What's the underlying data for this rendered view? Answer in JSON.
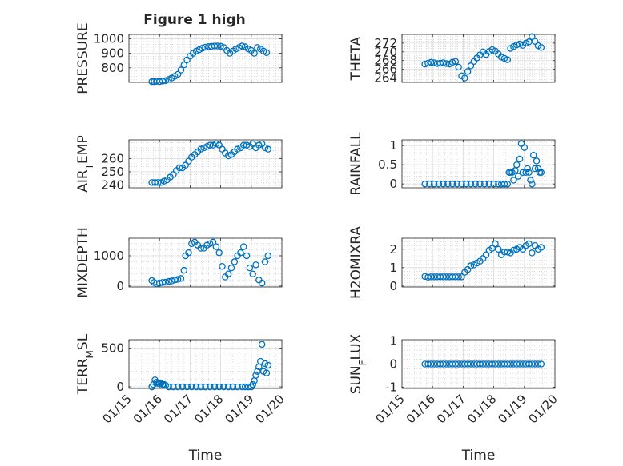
{
  "figure": {
    "title": "Figure 1 high"
  },
  "colors": {
    "marker": "#0072BD",
    "axis": "#262626",
    "grid": "#c8c8c8",
    "background": "#ffffff"
  },
  "chart_data": [
    {
      "id": "pressure",
      "type": "scatter",
      "marker": "circle-open",
      "ylabel": "PRESSURE",
      "xlabel": "",
      "title": "Figure 1 high",
      "ylim": [
        700,
        1030
      ],
      "yticks": [
        800,
        900,
        1000
      ],
      "xlim": [
        0,
        5
      ],
      "xticks": [
        0,
        1,
        2,
        3,
        4,
        5
      ],
      "grid": true,
      "minor_grid": true,
      "x": [
        0.75,
        0.82,
        0.9,
        1.0,
        1.1,
        1.2,
        1.3,
        1.4,
        1.5,
        1.6,
        1.7,
        1.8,
        1.9,
        2.0,
        2.1,
        2.2,
        2.3,
        2.4,
        2.5,
        2.6,
        2.7,
        2.8,
        2.9,
        3.0,
        3.1,
        3.2,
        3.3,
        3.4,
        3.5,
        3.6,
        3.7,
        3.8,
        3.9,
        4.0,
        4.1,
        4.2,
        4.3,
        4.4,
        4.5
      ],
      "y": [
        705,
        705,
        707,
        705,
        708,
        712,
        720,
        730,
        742,
        755,
        785,
        820,
        855,
        880,
        900,
        915,
        925,
        935,
        942,
        946,
        948,
        950,
        950,
        948,
        940,
        920,
        900,
        915,
        930,
        940,
        950,
        945,
        930,
        920,
        900,
        940,
        930,
        915,
        905
      ]
    },
    {
      "id": "theta",
      "type": "scatter",
      "marker": "circle-open",
      "ylabel": "THETA",
      "xlabel": "",
      "ylim": [
        263,
        274
      ],
      "yticks": [
        264,
        266,
        268,
        270,
        272
      ],
      "xlim": [
        0,
        5
      ],
      "xticks": [
        0,
        1,
        2,
        3,
        4,
        5
      ],
      "grid": true,
      "minor_grid": true,
      "x": [
        0.75,
        0.85,
        0.95,
        1.05,
        1.15,
        1.25,
        1.35,
        1.45,
        1.55,
        1.65,
        1.75,
        1.85,
        1.95,
        2.05,
        2.15,
        2.25,
        2.35,
        2.45,
        2.55,
        2.65,
        2.75,
        2.85,
        2.95,
        3.05,
        3.15,
        3.25,
        3.35,
        3.45,
        3.55,
        3.65,
        3.75,
        3.85,
        3.95,
        4.05,
        4.15,
        4.25,
        4.35,
        4.45,
        4.55
      ],
      "y": [
        267.2,
        267.4,
        267.6,
        267.5,
        267.3,
        267.4,
        267.5,
        267.3,
        267.2,
        267.6,
        267.8,
        266.5,
        264.5,
        264.0,
        265.5,
        266.8,
        267.8,
        268.6,
        269.3,
        270.0,
        269.4,
        270.1,
        270.5,
        270.2,
        269.5,
        268.8,
        268.5,
        268.2,
        270.8,
        271.2,
        271.6,
        271.8,
        271.5,
        272.0,
        272.3,
        273.5,
        272.4,
        271.4,
        271.0
      ]
    },
    {
      "id": "air_temp",
      "type": "scatter",
      "marker": "circle-open",
      "ylabel": "AIR_TEMP",
      "xlabel": "",
      "ylim": [
        238,
        274
      ],
      "yticks": [
        240,
        250,
        260
      ],
      "xlim": [
        0,
        5
      ],
      "xticks": [
        0,
        1,
        2,
        3,
        4,
        5
      ],
      "grid": true,
      "minor_grid": true,
      "x": [
        0.75,
        0.85,
        0.95,
        1.05,
        1.15,
        1.25,
        1.35,
        1.45,
        1.55,
        1.65,
        1.75,
        1.85,
        1.95,
        2.05,
        2.15,
        2.25,
        2.35,
        2.45,
        2.55,
        2.65,
        2.75,
        2.85,
        2.95,
        3.05,
        3.15,
        3.25,
        3.35,
        3.45,
        3.55,
        3.65,
        3.75,
        3.85,
        3.95,
        4.05,
        4.15,
        4.25,
        4.35,
        4.45,
        4.55
      ],
      "y": [
        242,
        242,
        242,
        242,
        243,
        244,
        246,
        248,
        251,
        253,
        253,
        255,
        258,
        261,
        263,
        265,
        267,
        268,
        269,
        270,
        270,
        271,
        270,
        267,
        264,
        262,
        263,
        265,
        267,
        268,
        270,
        270,
        269,
        271,
        268,
        270,
        271,
        268,
        267
      ]
    },
    {
      "id": "rainfall",
      "type": "scatter",
      "marker": "circle-open",
      "ylabel": "RAINFALL",
      "xlabel": "",
      "ylim": [
        -0.1,
        1.15
      ],
      "yticks": [
        0,
        0.5,
        1
      ],
      "xlim": [
        0,
        5
      ],
      "xticks": [
        0,
        1,
        2,
        3,
        4,
        5
      ],
      "grid": true,
      "minor_grid": true,
      "x": [
        0.75,
        0.9,
        1.05,
        1.2,
        1.35,
        1.5,
        1.65,
        1.8,
        1.95,
        2.1,
        2.25,
        2.4,
        2.55,
        2.7,
        2.85,
        3.0,
        3.15,
        3.25,
        3.35,
        3.45,
        3.5,
        3.55,
        3.6,
        3.65,
        3.7,
        3.75,
        3.8,
        3.85,
        3.9,
        3.95,
        4.0,
        4.05,
        4.1,
        4.15,
        4.2,
        4.25,
        4.3,
        4.35,
        4.4,
        4.45,
        4.5,
        4.55
      ],
      "y": [
        0,
        0,
        0,
        0,
        0,
        0,
        0,
        0,
        0,
        0,
        0,
        0,
        0,
        0,
        0,
        0,
        0,
        0,
        0,
        0,
        0.3,
        0.3,
        0.3,
        0.1,
        0.35,
        0.5,
        0.2,
        0.65,
        1.05,
        0.3,
        0.95,
        0.3,
        0.4,
        0.3,
        0.1,
        0,
        0.75,
        0.4,
        0.6,
        0.4,
        0.3,
        0.3
      ]
    },
    {
      "id": "mixdepth",
      "type": "scatter",
      "marker": "circle-open",
      "ylabel": "MIXDEPTH",
      "xlabel": "",
      "ylim": [
        -30,
        1580
      ],
      "yticks": [
        0,
        1000
      ],
      "xlim": [
        0,
        5
      ],
      "xticks": [
        0,
        1,
        2,
        3,
        4,
        5
      ],
      "grid": true,
      "minor_grid": true,
      "x": [
        0.75,
        0.82,
        0.9,
        1.0,
        1.1,
        1.2,
        1.3,
        1.4,
        1.5,
        1.6,
        1.7,
        1.8,
        1.85,
        1.95,
        2.05,
        2.15,
        2.25,
        2.35,
        2.45,
        2.55,
        2.65,
        2.75,
        2.85,
        2.95,
        3.05,
        3.15,
        3.25,
        3.35,
        3.45,
        3.55,
        3.65,
        3.75,
        3.85,
        3.95,
        4.05,
        4.15,
        4.25,
        4.35,
        4.45,
        4.55
      ],
      "y": [
        180,
        120,
        80,
        100,
        120,
        130,
        150,
        170,
        200,
        220,
        250,
        520,
        1000,
        1100,
        1400,
        1450,
        1350,
        1250,
        1250,
        1350,
        1400,
        1450,
        1300,
        1100,
        650,
        300,
        400,
        600,
        800,
        1000,
        1100,
        1300,
        1000,
        600,
        400,
        700,
        200,
        100,
        800,
        1000
      ]
    },
    {
      "id": "h2omixra",
      "type": "scatter",
      "marker": "circle-open",
      "ylabel": "H2OMIXRA",
      "xlabel": "",
      "ylim": [
        -0.05,
        2.6
      ],
      "yticks": [
        0,
        1,
        2
      ],
      "xlim": [
        0,
        5
      ],
      "xticks": [
        0,
        1,
        2,
        3,
        4,
        5
      ],
      "grid": true,
      "minor_grid": true,
      "x": [
        0.75,
        0.85,
        0.95,
        1.05,
        1.15,
        1.25,
        1.35,
        1.45,
        1.55,
        1.65,
        1.75,
        1.85,
        1.95,
        2.05,
        2.15,
        2.25,
        2.35,
        2.45,
        2.55,
        2.65,
        2.75,
        2.85,
        2.95,
        3.05,
        3.15,
        3.25,
        3.35,
        3.45,
        3.55,
        3.65,
        3.75,
        3.85,
        3.95,
        4.05,
        4.15,
        4.25,
        4.35,
        4.45,
        4.55
      ],
      "y": [
        0.52,
        0.48,
        0.5,
        0.5,
        0.5,
        0.5,
        0.5,
        0.5,
        0.5,
        0.5,
        0.5,
        0.5,
        0.5,
        0.75,
        0.9,
        1.1,
        1.15,
        1.25,
        1.35,
        1.5,
        1.7,
        1.95,
        2.05,
        2.3,
        2.0,
        1.7,
        1.85,
        1.85,
        1.8,
        1.95,
        2.0,
        2.1,
        2.0,
        2.2,
        2.3,
        1.8,
        2.2,
        2.0,
        2.1
      ]
    },
    {
      "id": "terr_msl",
      "type": "scatter",
      "marker": "circle-open",
      "ylabel": "TERR_MSL",
      "xlabel": "Time",
      "ylim": [
        -20,
        610
      ],
      "yticks": [
        0,
        500
      ],
      "xlim": [
        0,
        5
      ],
      "xticks": [
        0,
        1,
        2,
        3,
        4,
        5
      ],
      "xticklabels": [
        "01/15",
        "01/16",
        "01/17",
        "01/18",
        "01/19",
        "01/20"
      ],
      "grid": true,
      "minor_grid": true,
      "x": [
        0.75,
        0.8,
        0.85,
        0.9,
        0.95,
        1.0,
        1.05,
        1.1,
        1.15,
        1.2,
        1.3,
        1.45,
        1.6,
        1.75,
        1.9,
        2.05,
        2.2,
        2.35,
        2.5,
        2.65,
        2.8,
        2.95,
        3.1,
        3.25,
        3.4,
        3.55,
        3.7,
        3.8,
        3.9,
        4.0,
        4.05,
        4.1,
        4.15,
        4.2,
        4.25,
        4.3,
        4.35,
        4.4,
        4.45,
        4.5,
        4.55
      ],
      "y": [
        0,
        30,
        90,
        60,
        45,
        40,
        45,
        30,
        30,
        20,
        0,
        0,
        0,
        0,
        0,
        0,
        0,
        0,
        0,
        0,
        0,
        0,
        0,
        0,
        0,
        0,
        0,
        0,
        0,
        0,
        30,
        80,
        150,
        200,
        260,
        330,
        550,
        200,
        300,
        180,
        280
      ]
    },
    {
      "id": "sun_flux",
      "type": "scatter",
      "marker": "circle-open",
      "ylabel": "SUN_FLUX",
      "xlabel": "Time",
      "ylim": [
        -1.05,
        1.05
      ],
      "yticks": [
        -1,
        0,
        1
      ],
      "xlim": [
        0,
        5
      ],
      "xticks": [
        0,
        1,
        2,
        3,
        4,
        5
      ],
      "xticklabels": [
        "01/15",
        "01/16",
        "01/17",
        "01/18",
        "01/19",
        "01/20"
      ],
      "grid": true,
      "minor_grid": true,
      "x": [
        0.75,
        0.85,
        0.95,
        1.05,
        1.15,
        1.25,
        1.35,
        1.45,
        1.55,
        1.65,
        1.75,
        1.85,
        1.95,
        2.05,
        2.15,
        2.25,
        2.35,
        2.45,
        2.55,
        2.65,
        2.75,
        2.85,
        2.95,
        3.05,
        3.15,
        3.25,
        3.35,
        3.45,
        3.55,
        3.65,
        3.75,
        3.85,
        3.95,
        4.05,
        4.15,
        4.25,
        4.35,
        4.45,
        4.55
      ],
      "y": [
        0,
        0,
        0,
        0,
        0,
        0,
        0,
        0,
        0,
        0,
        0,
        0,
        0,
        0,
        0,
        0,
        0,
        0,
        0,
        0,
        0,
        0,
        0,
        0,
        0,
        0,
        0,
        0,
        0,
        0,
        0,
        0,
        0,
        0,
        0,
        0,
        0,
        0,
        0
      ]
    }
  ]
}
